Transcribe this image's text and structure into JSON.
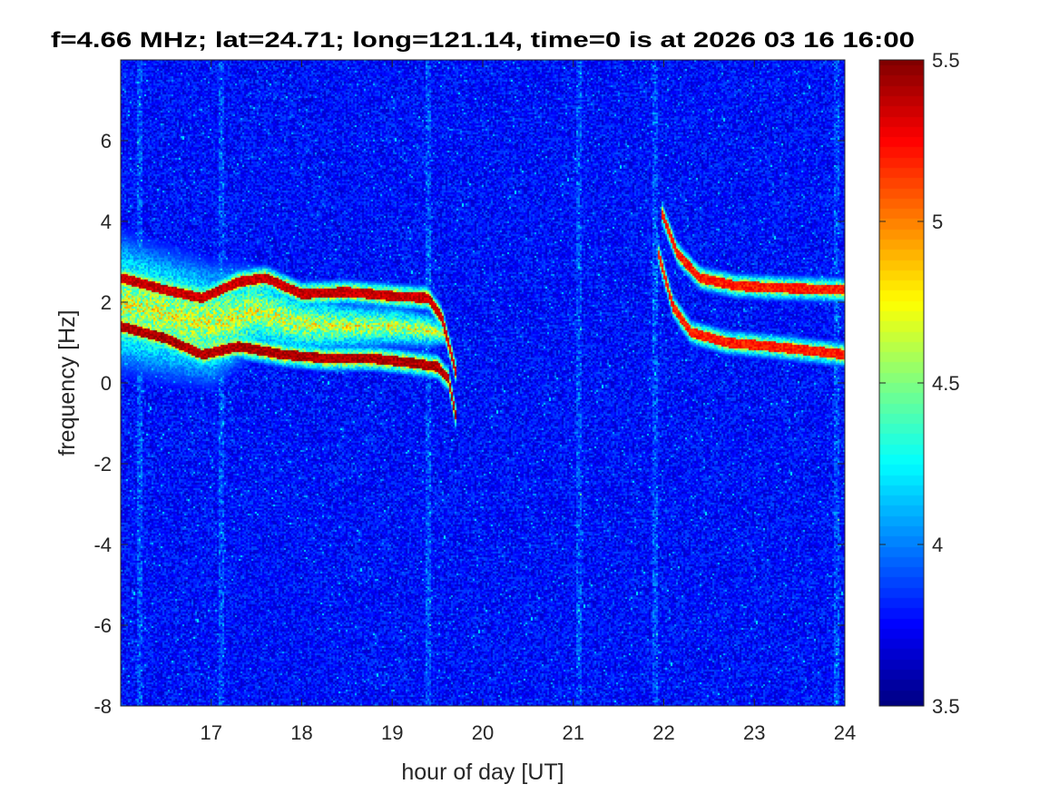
{
  "chart_data": {
    "type": "heatmap",
    "title": "f=4.66 MHz;  lat=24.71; long=121.14, time=0 is at 2026 03 16 16:00",
    "xlabel": "hour of day [UT]",
    "ylabel": "frequency [Hz]",
    "xlim": [
      16,
      24
    ],
    "ylim": [
      -8,
      8
    ],
    "x_ticks": [
      "17",
      "18",
      "19",
      "20",
      "21",
      "22",
      "23",
      "24"
    ],
    "y_ticks": [
      "-8",
      "-6",
      "-4",
      "-2",
      "0",
      "2",
      "4",
      "6"
    ],
    "colorbar": {
      "range": [
        3.5,
        5.5
      ],
      "ticks": [
        "3.5",
        "4",
        "4.5",
        "5",
        "5.5"
      ],
      "colormap": "jet"
    },
    "background_level": 3.75,
    "bright_vertical_lines_hours": [
      16.2,
      17.1,
      19.38,
      21.05,
      21.9,
      23.9
    ],
    "traces": [
      {
        "level": 5.5,
        "points": [
          [
            16.0,
            1.4
          ],
          [
            16.5,
            1.1
          ],
          [
            16.9,
            0.7
          ],
          [
            17.3,
            0.9
          ],
          [
            17.8,
            0.7
          ],
          [
            18.3,
            0.6
          ],
          [
            18.8,
            0.6
          ],
          [
            19.2,
            0.5
          ],
          [
            19.5,
            0.4
          ],
          [
            19.62,
            0.1
          ],
          [
            19.7,
            -0.8
          ]
        ]
      },
      {
        "level": 5.45,
        "points": [
          [
            16.0,
            2.6
          ],
          [
            16.5,
            2.3
          ],
          [
            16.9,
            2.1
          ],
          [
            17.3,
            2.5
          ],
          [
            17.6,
            2.6
          ],
          [
            18.0,
            2.2
          ],
          [
            18.5,
            2.25
          ],
          [
            19.0,
            2.15
          ],
          [
            19.4,
            2.1
          ],
          [
            19.55,
            1.6
          ],
          [
            19.7,
            0.3
          ]
        ]
      },
      {
        "level": 5.3,
        "points": [
          [
            21.98,
            4.2
          ],
          [
            22.15,
            3.2
          ],
          [
            22.4,
            2.6
          ],
          [
            22.8,
            2.4
          ],
          [
            23.3,
            2.35
          ],
          [
            24.0,
            2.3
          ]
        ]
      },
      {
        "level": 5.3,
        "points": [
          [
            21.93,
            3.3
          ],
          [
            22.1,
            1.9
          ],
          [
            22.3,
            1.25
          ],
          [
            22.7,
            1.0
          ],
          [
            23.2,
            0.9
          ],
          [
            23.6,
            0.8
          ],
          [
            24.0,
            0.7
          ]
        ]
      }
    ],
    "broad_band": {
      "level": 4.85,
      "points": [
        [
          16.0,
          2.0,
          1.9
        ],
        [
          16.5,
          1.7,
          1.8
        ],
        [
          17.0,
          1.45,
          1.7
        ],
        [
          17.5,
          1.8,
          1.2
        ],
        [
          18.0,
          1.45,
          0.9
        ],
        [
          18.5,
          1.4,
          0.7
        ],
        [
          19.0,
          1.4,
          0.6
        ],
        [
          19.4,
          1.3,
          0.5
        ],
        [
          19.6,
          1.2,
          0.3
        ]
      ]
    }
  }
}
